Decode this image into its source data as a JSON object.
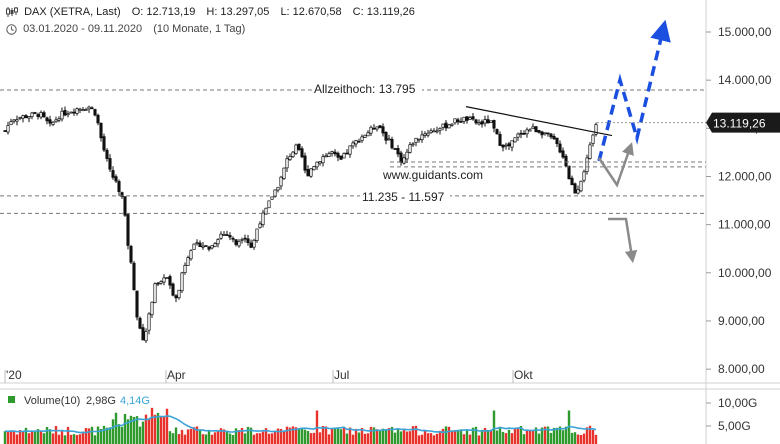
{
  "header": {
    "symbol": "DAX (XETRA, Last)",
    "open": "O: 12.713,19",
    "high": "H: 13.297,05",
    "low": "L: 12.670,58",
    "close": "C: 13.119,26",
    "range": "03.01.2020 - 09.11.2020",
    "period": "(10 Monate, 1 Tag)"
  },
  "annotations": {
    "ath_label": "Allzeithoch: 13.795",
    "watermark": "www.guidants.com",
    "zone_label": "11.235 - 11.597"
  },
  "price_axis": [
    "15.000,00",
    "14.000,00",
    "13.000,00",
    "12.000,00",
    "11.000,00",
    "10.000,00",
    "9.000,00",
    "8.000,00"
  ],
  "last_price": "13.119,26",
  "time_axis": [
    "'20",
    "Apr",
    "Jul",
    "Okt"
  ],
  "volume": {
    "label": "Volume(10)",
    "value": "2,98G",
    "avg": "4,14G",
    "axis": [
      "10,00G",
      "5,00G"
    ]
  },
  "colors": {
    "up": "#e8322c",
    "down": "#2e9a2e",
    "avg_line": "#3aa3d8",
    "forecast_up": "#1a4fe0",
    "forecast_down": "#8a8a8a",
    "last_price_bg": "#1a1a1a"
  },
  "chart_data": {
    "type": "candlestick",
    "y_range": [
      7800,
      15500
    ],
    "levels": [
      13795,
      12300,
      12200,
      11597,
      11235
    ],
    "trendline": {
      "from": [
        "2020-07-31",
        13450
      ],
      "to": [
        "2020-10-23",
        12850
      ]
    },
    "forecast_up": [
      [
        12250,
        13800,
        12850,
        15050
      ]
    ],
    "forecast_down": [
      [
        12250,
        12600,
        11850
      ],
      [
        11000,
        10200
      ]
    ],
    "volume_range": [
      0,
      12
    ]
  }
}
